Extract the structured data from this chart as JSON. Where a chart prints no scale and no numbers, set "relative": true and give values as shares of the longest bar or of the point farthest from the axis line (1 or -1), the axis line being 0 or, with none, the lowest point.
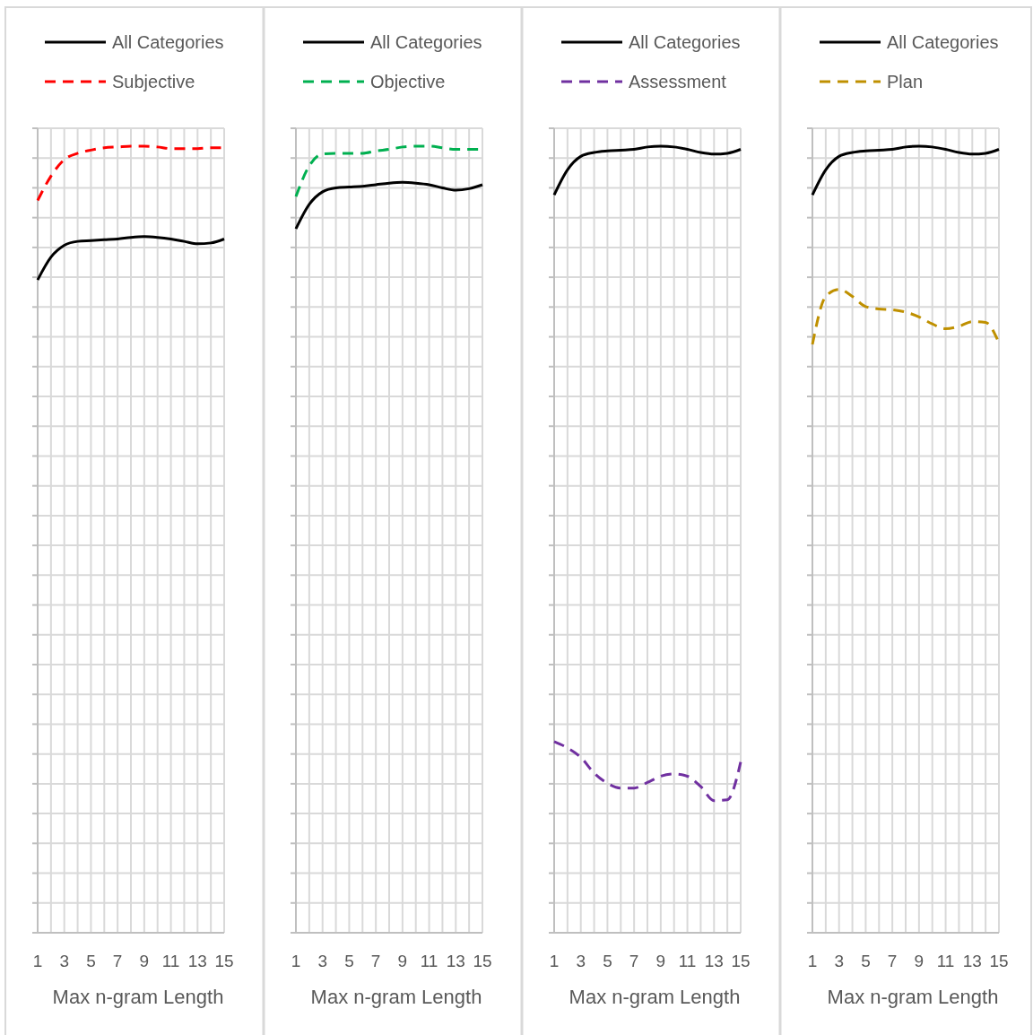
{
  "chart_data": [
    {
      "type": "line",
      "relative": true,
      "x": [
        1,
        2,
        3,
        4,
        5,
        6,
        7,
        8,
        9,
        10,
        11,
        12,
        13,
        14,
        15
      ],
      "xlim": [
        1,
        15
      ],
      "xticks": [
        1,
        {
          "value": 2,
          "label": null
        },
        3,
        {
          "value": 4,
          "label": null
        },
        5,
        {
          "value": 6,
          "label": null
        },
        7,
        {
          "value": 8,
          "label": null
        },
        9,
        {
          "value": 10,
          "label": null
        },
        11,
        {
          "value": 12,
          "label": null
        },
        13,
        {
          "value": 14,
          "label": null
        },
        15
      ],
      "xlabel": "Max n-gram Length",
      "legend": "top",
      "grid": true,
      "series": [
        {
          "name": "All Categories",
          "color": "#000000",
          "line_style": "solid",
          "values": [
            0.83,
            0.859,
            0.874,
            0.879,
            0.88,
            0.881,
            0.882,
            0.884,
            0.885,
            0.884,
            0.882,
            0.879,
            0.876,
            0.877,
            0.882
          ]
        },
        {
          "name": "Subjective",
          "color": "#ff0000",
          "line_style": "dashed",
          "values": [
            0.931,
            0.962,
            0.983,
            0.991,
            0.995,
            0.998,
            0.999,
            1,
            1,
            0.999,
            0.997,
            0.997,
            0.997,
            0.998,
            0.998
          ]
        }
      ]
    },
    {
      "type": "line",
      "relative": true,
      "x": [
        1,
        2,
        3,
        4,
        5,
        6,
        7,
        8,
        9,
        10,
        11,
        12,
        13,
        14,
        15
      ],
      "xlim": [
        1,
        15
      ],
      "xticks": [
        1,
        {
          "value": 2,
          "label": null
        },
        3,
        {
          "value": 4,
          "label": null
        },
        5,
        {
          "value": 6,
          "label": null
        },
        7,
        {
          "value": 8,
          "label": null
        },
        9,
        {
          "value": 10,
          "label": null
        },
        11,
        {
          "value": 12,
          "label": null
        },
        13,
        {
          "value": 14,
          "label": null
        },
        15
      ],
      "xlabel": "Max n-gram Length",
      "legend": "top",
      "grid": true,
      "series": [
        {
          "name": "All Categories",
          "color": "#000000",
          "line_style": "solid",
          "values": [
            0.895,
            0.926,
            0.942,
            0.947,
            0.948,
            0.949,
            0.951,
            0.953,
            0.954,
            0.953,
            0.951,
            0.947,
            0.944,
            0.946,
            0.951
          ]
        },
        {
          "name": "Objective",
          "color": "#00b050",
          "line_style": "dashed",
          "values": [
            0.936,
            0.975,
            0.99,
            0.991,
            0.991,
            0.991,
            0.994,
            0.996,
            0.999,
            1,
            1,
            0.998,
            0.996,
            0.996,
            0.996
          ]
        }
      ]
    },
    {
      "type": "line",
      "relative": true,
      "x": [
        1,
        2,
        3,
        4,
        5,
        6,
        7,
        8,
        9,
        10,
        11,
        12,
        13,
        14,
        15
      ],
      "xlim": [
        1,
        15
      ],
      "xticks": [
        1,
        {
          "value": 2,
          "label": null
        },
        3,
        {
          "value": 4,
          "label": null
        },
        5,
        {
          "value": 6,
          "label": null
        },
        7,
        {
          "value": 8,
          "label": null
        },
        9,
        {
          "value": 10,
          "label": null
        },
        11,
        {
          "value": 12,
          "label": null
        },
        13,
        {
          "value": 14,
          "label": null
        },
        15
      ],
      "xlabel": "Max n-gram Length",
      "legend": "top",
      "grid": true,
      "series": [
        {
          "name": "All Categories",
          "color": "#000000",
          "line_style": "solid",
          "values": [
            0.938,
            0.97,
            0.987,
            0.992,
            0.994,
            0.995,
            0.996,
            0.999,
            1,
            0.999,
            0.996,
            0.992,
            0.99,
            0.991,
            0.996
          ]
        },
        {
          "name": "Assessment",
          "color": "#7030a0",
          "line_style": "dashed",
          "values": [
            0.243,
            0.235,
            0.223,
            0.203,
            0.19,
            0.184,
            0.184,
            0.191,
            0.199,
            0.202,
            0.199,
            0.186,
            0.168,
            0.169,
            0.217
          ]
        }
      ]
    },
    {
      "type": "line",
      "relative": true,
      "x": [
        1,
        2,
        3,
        4,
        5,
        6,
        7,
        8,
        9,
        10,
        11,
        12,
        13,
        14,
        15
      ],
      "xlim": [
        1,
        15
      ],
      "xticks": [
        1,
        {
          "value": 2,
          "label": null
        },
        3,
        {
          "value": 4,
          "label": null
        },
        5,
        {
          "value": 6,
          "label": null
        },
        7,
        {
          "value": 8,
          "label": null
        },
        9,
        {
          "value": 10,
          "label": null
        },
        11,
        {
          "value": 12,
          "label": null
        },
        13,
        {
          "value": 14,
          "label": null
        },
        15
      ],
      "xlabel": "Max n-gram Length",
      "legend": "top",
      "grid": true,
      "series": [
        {
          "name": "All Categories",
          "color": "#000000",
          "line_style": "solid",
          "values": [
            0.938,
            0.97,
            0.987,
            0.992,
            0.994,
            0.995,
            0.996,
            0.999,
            1,
            0.999,
            0.996,
            0.992,
            0.99,
            0.991,
            0.996
          ]
        },
        {
          "name": "Plan",
          "color": "#bf9000",
          "line_style": "dashed",
          "values": [
            0.748,
            0.809,
            0.818,
            0.809,
            0.796,
            0.793,
            0.792,
            0.789,
            0.783,
            0.774,
            0.768,
            0.771,
            0.777,
            0.776,
            0.75
          ]
        }
      ]
    }
  ]
}
